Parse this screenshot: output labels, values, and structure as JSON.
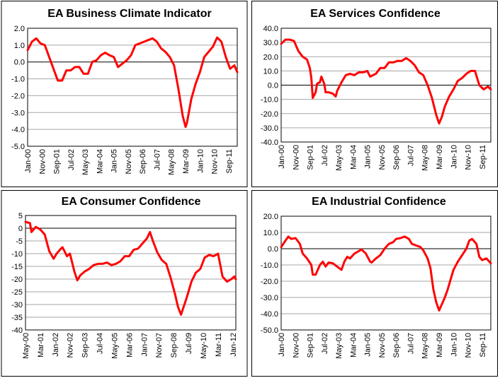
{
  "colors": {
    "line": "#ff0000",
    "grid": "#a6a6a6",
    "zero_line": "#000000",
    "border": "#000000"
  },
  "chart_data": [
    {
      "type": "line",
      "title": "EA Business  Climate Indicator",
      "ylim": [
        -5,
        2
      ],
      "ytick_labels": [
        "2.0",
        "1.0",
        "0.0",
        "-1.0",
        "-2.0",
        "-3.0",
        "-4.0",
        "-5.0"
      ],
      "xlim": [
        "2000-01",
        "2012-03"
      ],
      "xtick_labels": [
        "Jan-00",
        "Nov-00",
        "Sep-01",
        "Jul-02",
        "May-03",
        "Mar-04",
        "Jan-05",
        "Nov-05",
        "Sep-06",
        "Jul-07",
        "May-08",
        "Mar-09",
        "Jan-10",
        "Nov-10",
        "Sep-11"
      ],
      "grid": true,
      "x": [
        "2000-01",
        "2000-04",
        "2000-07",
        "2000-10",
        "2001-01",
        "2001-04",
        "2001-07",
        "2001-10",
        "2002-01",
        "2002-04",
        "2002-07",
        "2002-10",
        "2003-01",
        "2003-04",
        "2003-07",
        "2003-10",
        "2004-01",
        "2004-04",
        "2004-07",
        "2004-10",
        "2005-01",
        "2005-04",
        "2005-07",
        "2005-10",
        "2006-01",
        "2006-04",
        "2006-07",
        "2006-10",
        "2007-01",
        "2007-04",
        "2007-07",
        "2007-10",
        "2008-01",
        "2008-04",
        "2008-07",
        "2008-10",
        "2009-01",
        "2009-03",
        "2009-04",
        "2009-07",
        "2009-10",
        "2010-01",
        "2010-04",
        "2010-07",
        "2010-10",
        "2011-01",
        "2011-04",
        "2011-07",
        "2011-10",
        "2012-01",
        "2012-03"
      ],
      "y": [
        0.7,
        1.2,
        1.4,
        1.1,
        1.0,
        0.3,
        -0.4,
        -1.1,
        -1.1,
        -0.5,
        -0.5,
        -0.3,
        -0.3,
        -0.7,
        -0.7,
        0.0,
        0.1,
        0.4,
        0.55,
        0.4,
        0.3,
        -0.3,
        -0.1,
        0.1,
        0.4,
        1.0,
        1.1,
        1.2,
        1.3,
        1.4,
        1.2,
        0.8,
        0.6,
        0.3,
        -0.2,
        -1.6,
        -3.2,
        -3.85,
        -3.6,
        -2.2,
        -1.3,
        -0.6,
        0.3,
        0.6,
        0.9,
        1.45,
        1.2,
        0.3,
        -0.4,
        -0.2,
        -0.6
      ]
    },
    {
      "type": "line",
      "title": "EA Services Confidence",
      "ylim": [
        -40,
        40
      ],
      "ytick_labels": [
        "40.0",
        "30.0",
        "20.0",
        "10.0",
        "0.0",
        "-10.0",
        "-20.0",
        "-30.0",
        "-40.0"
      ],
      "xlim": [
        "2000-01",
        "2012-03"
      ],
      "xtick_labels": [
        "Jan-00",
        "Nov-00",
        "Sep-01",
        "Jul-02",
        "May-03",
        "Mar-04",
        "Jan-05",
        "Nov-05",
        "Sep-06",
        "Jul-07",
        "May-08",
        "Mar-09",
        "Jan-10",
        "Nov-10",
        "Sep-11"
      ],
      "grid": true,
      "x": [
        "2000-01",
        "2000-04",
        "2000-07",
        "2000-10",
        "2001-01",
        "2001-04",
        "2001-07",
        "2001-09",
        "2001-10",
        "2001-11",
        "2002-01",
        "2002-02",
        "2002-04",
        "2002-05",
        "2002-07",
        "2002-08",
        "2002-10",
        "2003-01",
        "2003-03",
        "2003-04",
        "2003-07",
        "2003-10",
        "2004-01",
        "2004-04",
        "2004-07",
        "2004-10",
        "2005-01",
        "2005-03",
        "2005-07",
        "2005-10",
        "2006-01",
        "2006-04",
        "2006-07",
        "2006-10",
        "2007-01",
        "2007-04",
        "2007-07",
        "2007-10",
        "2008-01",
        "2008-04",
        "2008-07",
        "2008-10",
        "2009-01",
        "2009-03",
        "2009-05",
        "2009-07",
        "2009-10",
        "2010-01",
        "2010-04",
        "2010-07",
        "2010-10",
        "2011-01",
        "2011-04",
        "2011-07",
        "2011-10",
        "2012-01",
        "2012-03"
      ],
      "y": [
        29,
        32,
        32,
        31,
        24,
        20,
        18,
        12,
        5,
        -9,
        -5,
        1,
        2,
        6,
        1,
        -5,
        -5,
        -6,
        -8,
        -4,
        2,
        7,
        8,
        7,
        9,
        9,
        10,
        6,
        8,
        12,
        12,
        16,
        16,
        17,
        17,
        19,
        17,
        14,
        9,
        7,
        0,
        -9,
        -21,
        -27,
        -22,
        -15,
        -8,
        -3,
        3,
        5,
        8,
        10,
        10,
        0,
        -3,
        -1,
        -3
      ]
    },
    {
      "type": "line",
      "title": "EA Consumer Confidence",
      "ylim": [
        -40,
        5
      ],
      "ytick_labels": [
        "5",
        "0",
        "-5",
        "-10",
        "-15",
        "-20",
        "-25",
        "-30",
        "-35",
        "-40"
      ],
      "xlim": [
        "2000-05",
        "2012-03"
      ],
      "xtick_labels": [
        "May-00",
        "Mar-01",
        "Jan-02",
        "Nov-02",
        "Sep-03",
        "Jul-04",
        "May-05",
        "Mar-06",
        "Jan-07",
        "Nov-07",
        "Sep-08",
        "Jul-09",
        "May-10",
        "Mar-11",
        "Jan-12"
      ],
      "grid": true,
      "x": [
        "2000-05",
        "2000-08",
        "2000-09",
        "2000-12",
        "2001-03",
        "2001-06",
        "2001-09",
        "2001-12",
        "2002-02",
        "2002-05",
        "2002-06",
        "2002-09",
        "2002-11",
        "2003-02",
        "2003-04",
        "2003-06",
        "2003-09",
        "2003-12",
        "2004-03",
        "2004-06",
        "2004-09",
        "2004-12",
        "2005-03",
        "2005-06",
        "2005-09",
        "2005-12",
        "2006-03",
        "2006-06",
        "2006-09",
        "2006-12",
        "2007-03",
        "2007-05",
        "2007-07",
        "2007-10",
        "2008-01",
        "2008-04",
        "2008-07",
        "2008-10",
        "2008-12",
        "2009-02",
        "2009-06",
        "2009-09",
        "2009-12",
        "2010-03",
        "2010-06",
        "2010-09",
        "2010-12",
        "2011-03",
        "2011-06",
        "2011-09",
        "2011-12",
        "2012-02",
        "2012-03"
      ],
      "y": [
        2.5,
        2,
        -1.5,
        0.5,
        -0.5,
        -2.5,
        -9,
        -12,
        -10,
        -8,
        -7.5,
        -11,
        -10,
        -17,
        -20.5,
        -18.5,
        -17,
        -16,
        -14.5,
        -14,
        -14,
        -13.5,
        -14.5,
        -14,
        -13,
        -11,
        -11,
        -8.5,
        -8,
        -6,
        -4,
        -1.5,
        -5,
        -9.5,
        -12.5,
        -14,
        -19.5,
        -26,
        -31,
        -34,
        -27,
        -21,
        -17.5,
        -16,
        -11.5,
        -10.5,
        -11,
        -10,
        -19,
        -21,
        -20,
        -19,
        -20
      ]
    },
    {
      "type": "line",
      "title": "EA Industrial Confidence",
      "ylim": [
        -50,
        20
      ],
      "ytick_labels": [
        "20.0",
        "10.0",
        "0.0",
        "-10.0",
        "-20.0",
        "-30.0",
        "-40.0",
        "-50.0"
      ],
      "xlim": [
        "2000-01",
        "2012-03"
      ],
      "xtick_labels": [
        "Jan-00",
        "Nov-00",
        "Sep-01",
        "Jul-02",
        "May-03",
        "Mar-04",
        "Jan-05",
        "Nov-05",
        "Sep-06",
        "Jul-07",
        "May-08",
        "Mar-09",
        "Jan-10",
        "Nov-10",
        "Sep-11"
      ],
      "grid": true,
      "x": [
        "2000-01",
        "2000-04",
        "2000-06",
        "2000-08",
        "2000-11",
        "2001-02",
        "2001-04",
        "2001-07",
        "2001-10",
        "2001-11",
        "2002-01",
        "2002-04",
        "2002-06",
        "2002-08",
        "2002-10",
        "2003-01",
        "2003-04",
        "2003-07",
        "2003-09",
        "2003-11",
        "2004-01",
        "2004-04",
        "2004-07",
        "2004-09",
        "2004-12",
        "2005-03",
        "2005-04",
        "2005-07",
        "2005-10",
        "2006-01",
        "2006-04",
        "2006-07",
        "2006-09",
        "2006-12",
        "2007-03",
        "2007-06",
        "2007-08",
        "2007-11",
        "2008-02",
        "2008-04",
        "2008-07",
        "2008-09",
        "2008-11",
        "2009-01",
        "2009-03",
        "2009-05",
        "2009-07",
        "2009-09",
        "2009-11",
        "2010-01",
        "2010-04",
        "2010-07",
        "2010-10",
        "2010-12",
        "2011-02",
        "2011-05",
        "2011-07",
        "2011-09",
        "2011-12",
        "2012-03"
      ],
      "y": [
        1,
        5,
        7.5,
        6,
        6.5,
        3,
        -3,
        -6,
        -10,
        -16,
        -16,
        -10,
        -8,
        -11,
        -8.5,
        -9,
        -11,
        -13,
        -8,
        -5,
        -6,
        -3,
        -1.5,
        -0.5,
        -3,
        -8,
        -8.5,
        -6,
        -4,
        0,
        3,
        4,
        6,
        6.5,
        7.5,
        6,
        3,
        2,
        1,
        -1,
        -6,
        -12,
        -25,
        -33,
        -38,
        -34,
        -30,
        -25,
        -19,
        -13,
        -8,
        -4,
        0,
        5,
        6,
        3,
        -5,
        -7,
        -6,
        -9
      ]
    }
  ]
}
